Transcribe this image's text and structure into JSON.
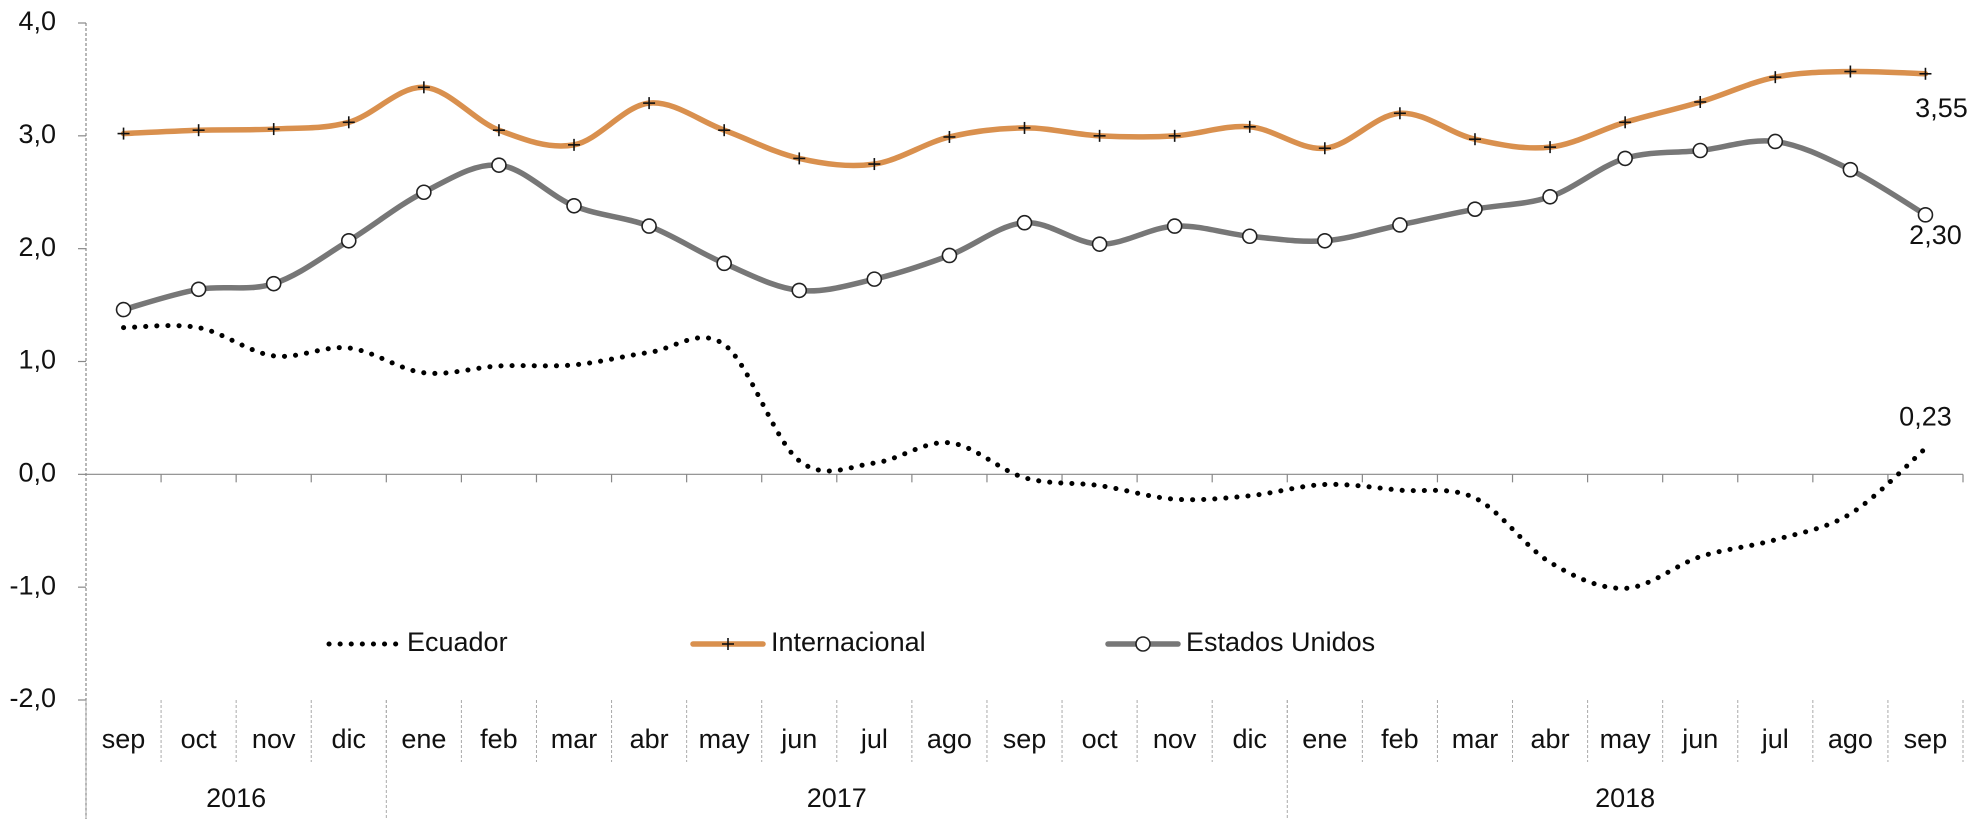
{
  "chart_data": {
    "type": "line",
    "categories": [
      "sep",
      "oct",
      "nov",
      "dic",
      "ene",
      "feb",
      "mar",
      "abr",
      "may",
      "jun",
      "jul",
      "ago",
      "sep",
      "oct",
      "nov",
      "dic",
      "ene",
      "feb",
      "mar",
      "abr",
      "may",
      "jun",
      "jul",
      "ago",
      "sep"
    ],
    "year_groups": [
      {
        "label": "2016",
        "span": 4
      },
      {
        "label": "2017",
        "span": 12
      },
      {
        "label": "2018",
        "span": 9
      }
    ],
    "ylim": [
      -2,
      4
    ],
    "yticks": [
      {
        "value": 4,
        "label": "4,0"
      },
      {
        "value": 3,
        "label": "3,0"
      },
      {
        "value": 2,
        "label": "2,0"
      },
      {
        "value": 1,
        "label": "1,0"
      },
      {
        "value": 0,
        "label": "0,0"
      },
      {
        "value": -1,
        "label": "-1,0"
      },
      {
        "value": -2,
        "label": "-2,0"
      }
    ],
    "legend": "lower center",
    "series": [
      {
        "name": "Ecuador",
        "color": "#000000",
        "style": "dotted",
        "values": [
          1.3,
          1.3,
          1.05,
          1.12,
          0.9,
          0.96,
          0.97,
          1.08,
          1.15,
          0.12,
          0.1,
          0.28,
          -0.03,
          -0.1,
          -0.22,
          -0.19,
          -0.09,
          -0.14,
          -0.21,
          -0.78,
          -1.01,
          -0.73,
          -0.58,
          -0.35,
          0.23
        ],
        "value_labels": [
          null,
          null,
          null,
          null,
          null,
          null,
          null,
          null,
          null,
          null,
          null,
          null,
          null,
          null,
          null,
          null,
          null,
          null,
          null,
          null,
          null,
          null,
          null,
          null,
          "0,23"
        ]
      },
      {
        "name": "Internacional",
        "color": "#d9904e",
        "style": "plus",
        "values": [
          3.02,
          3.05,
          3.06,
          3.12,
          3.43,
          3.05,
          2.92,
          3.29,
          3.05,
          2.8,
          2.75,
          2.99,
          3.07,
          3.0,
          3.0,
          3.08,
          2.89,
          3.2,
          2.97,
          2.9,
          3.12,
          3.3,
          3.52,
          3.57,
          3.55
        ],
        "value_labels": [
          null,
          null,
          null,
          null,
          null,
          null,
          null,
          null,
          null,
          null,
          null,
          null,
          null,
          null,
          null,
          null,
          null,
          null,
          null,
          null,
          null,
          null,
          null,
          null,
          "3,55"
        ]
      },
      {
        "name": "Estados Unidos",
        "color": "#777777",
        "style": "circle",
        "values": [
          1.46,
          1.64,
          1.69,
          2.07,
          2.5,
          2.74,
          2.38,
          2.2,
          1.87,
          1.63,
          1.73,
          1.94,
          2.23,
          2.04,
          2.2,
          2.11,
          2.07,
          2.21,
          2.35,
          2.46,
          2.8,
          2.87,
          2.95,
          2.7,
          2.3
        ],
        "value_labels": [
          null,
          null,
          null,
          null,
          null,
          null,
          null,
          null,
          null,
          null,
          null,
          null,
          null,
          null,
          null,
          null,
          null,
          null,
          null,
          null,
          null,
          null,
          null,
          null,
          "2,30"
        ]
      }
    ]
  }
}
